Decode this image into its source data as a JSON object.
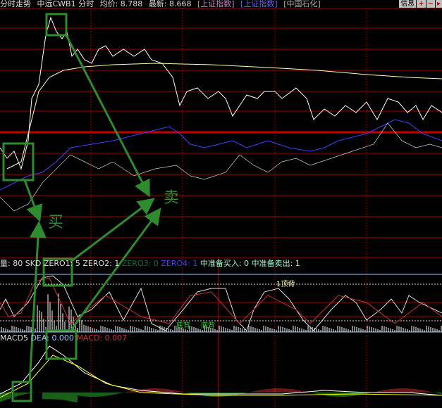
{
  "header": {
    "title": "分时走势",
    "stock": "中远CWB1 分时",
    "avg_label": "均价: 8.788",
    "last_label": "最新: 8.668",
    "index1": "[上证指数]",
    "index2": "[上证指数]",
    "index3": "[中国石化]"
  },
  "buttons": {
    "info": "信息",
    "plus": "+",
    "minus": "−",
    "next": "▸"
  },
  "indicator": {
    "vol": "量: 80",
    "skd": "SKD",
    "zero1": "ZERO1: 5",
    "zero2": "ZERO2: 1",
    "zero3": "ZERO3: 0",
    "zero4": "ZERO4: 1",
    "buy": "中准备买入: 0",
    "sell": "中准备卖出: 1"
  },
  "signals": {
    "top": "1顶背",
    "bottom1": "底背",
    "bottom2": "底背"
  },
  "macd": {
    "name": "MACD5",
    "dea": "DEA: 0.000",
    "macd": "MACD: 0.007"
  },
  "annotations": {
    "buy": "买",
    "sell": "卖"
  },
  "colors": {
    "grid": "#a00000",
    "annotation": "#2e8b2e",
    "price": "#ffffff",
    "avg": "#ffffaa",
    "index": "#4040ff"
  }
}
